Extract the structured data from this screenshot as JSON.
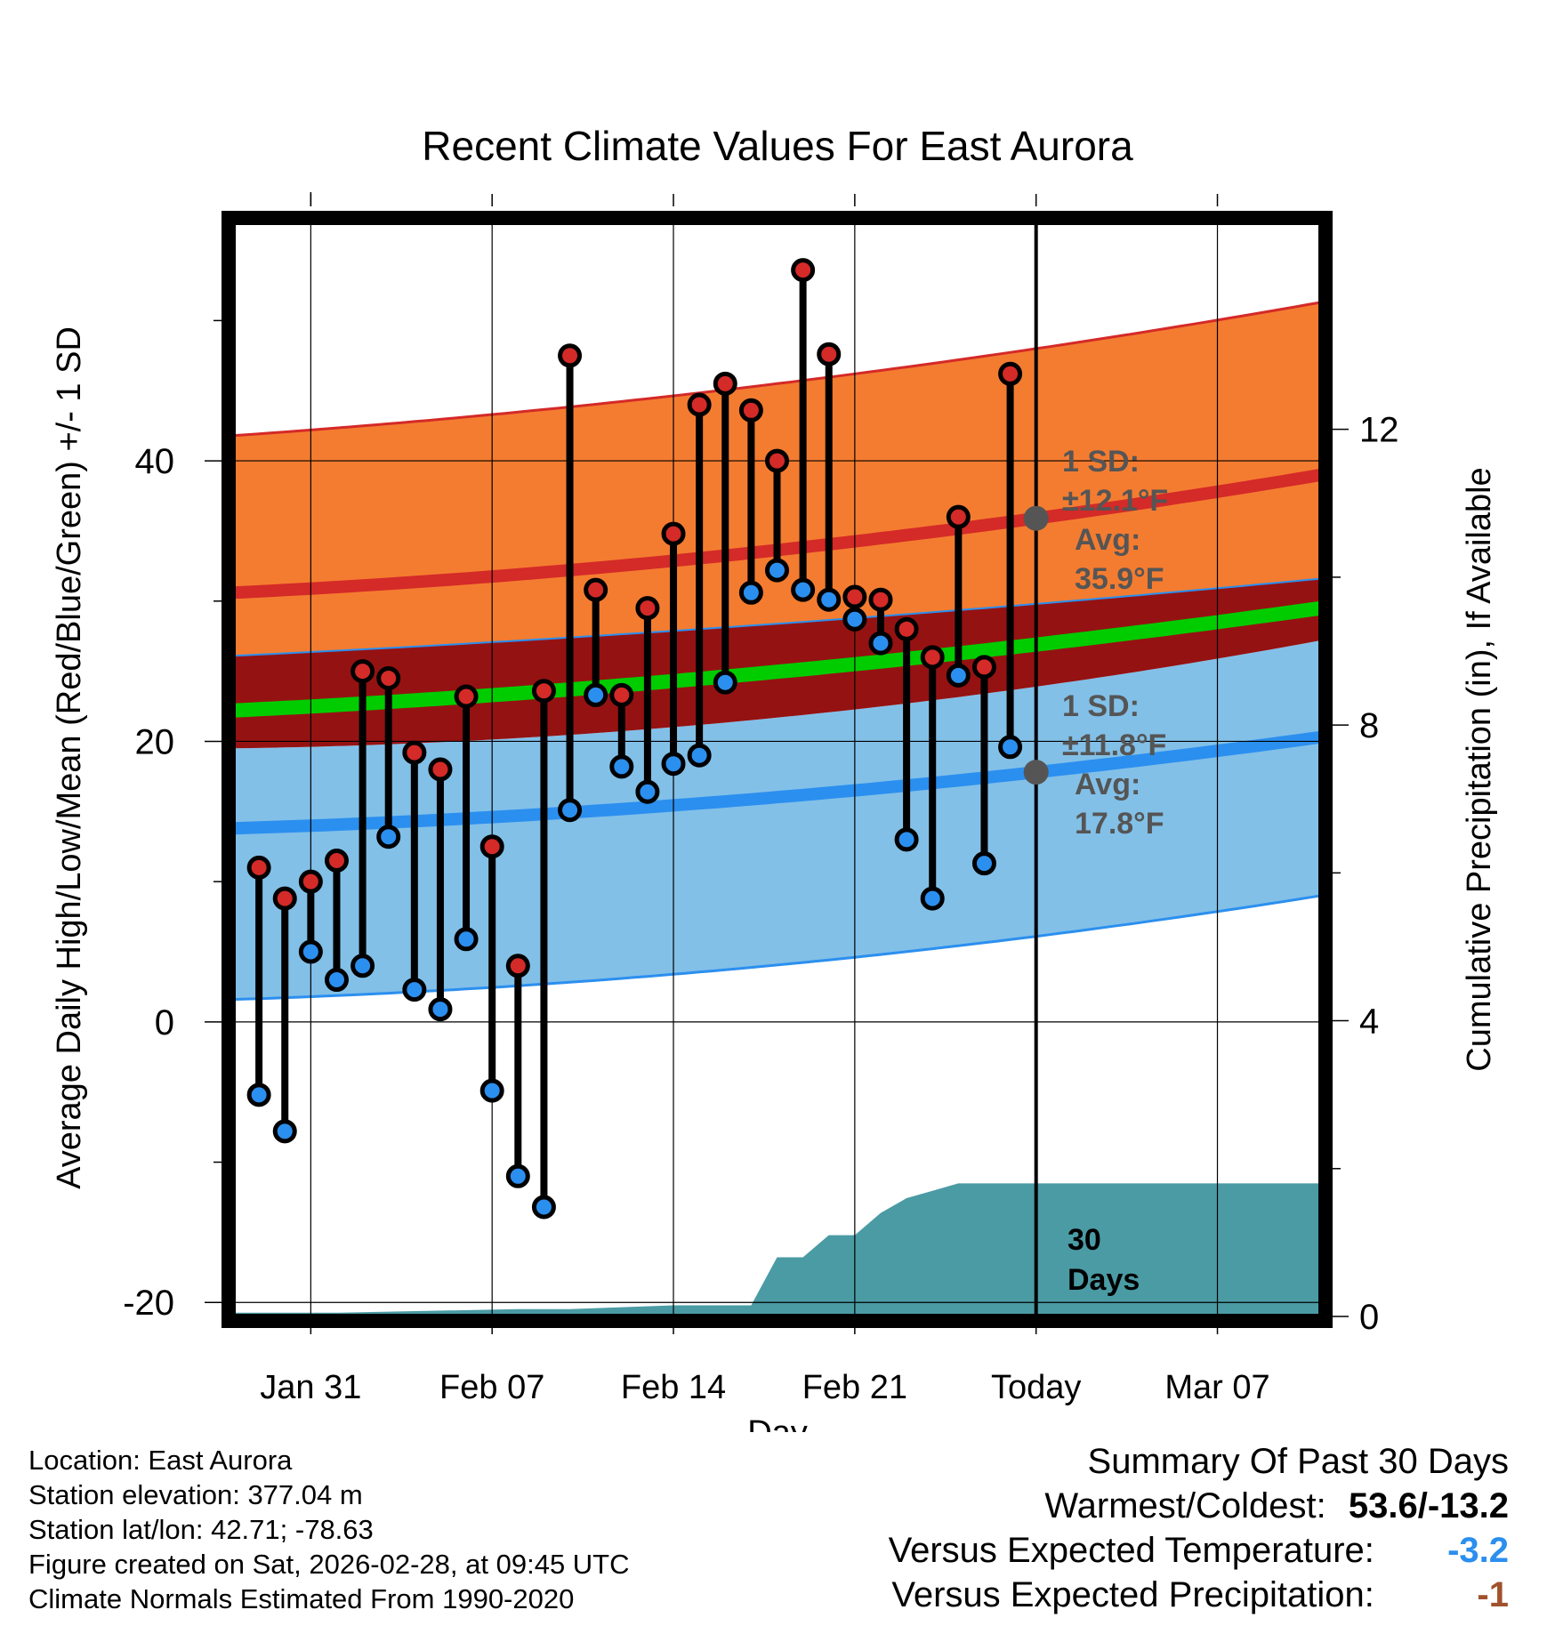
{
  "chart_data": {
    "type": "line",
    "title": "Recent Climate Values For East Aurora",
    "xlabel": "Day",
    "ylabel": "Average Daily High/Low/Mean (Red/Blue/Green) +/- 1 SD",
    "y2label": "Cumulative Precipitation (in), If Available",
    "ylim": [
      -21,
      57
    ],
    "y2lim": [
      0,
      30
    ],
    "xlim": [
      -31,
      11
    ],
    "x_tick_positions": [
      -28,
      -21,
      -14,
      -7,
      0,
      7
    ],
    "x_tick_labels": [
      "Jan 31",
      "Feb 07",
      "Feb 14",
      "Feb 21",
      "Today",
      "Mar 07"
    ],
    "y_ticks": [
      -20,
      0,
      20,
      40
    ],
    "y2_ticks": [
      0,
      4,
      8,
      12
    ],
    "days": [
      -30,
      -29,
      -28,
      -27,
      -26,
      -25,
      -24,
      -23,
      -22,
      -21,
      -20,
      -19,
      -18,
      -17,
      -16,
      -15,
      -14,
      -13,
      -12,
      -11,
      -10,
      -9,
      -8,
      -7,
      -6,
      -5,
      -4,
      -3,
      -2,
      -1
    ],
    "daily_high": [
      11.0,
      8.8,
      10.0,
      11.5,
      25.0,
      24.5,
      19.2,
      18.0,
      23.2,
      12.5,
      4.0,
      23.6,
      47.5,
      30.8,
      23.3,
      29.5,
      34.8,
      44.0,
      45.5,
      43.6,
      40.0,
      53.6,
      47.6,
      30.3,
      30.1,
      28.0,
      26.0,
      36.0,
      25.3,
      46.2
    ],
    "daily_low": [
      -5.2,
      -7.8,
      5.0,
      3.0,
      4.0,
      13.2,
      2.3,
      0.9,
      5.9,
      -4.9,
      -11.0,
      -13.2,
      15.1,
      23.3,
      18.2,
      16.4,
      18.4,
      19.0,
      24.2,
      30.6,
      32.2,
      30.8,
      30.1,
      28.7,
      27.0,
      13.0,
      8.8,
      24.7,
      11.3,
      19.6
    ],
    "normal_high": {
      "start": 30.6,
      "today": 35.9,
      "end": 39.0
    },
    "normal_high_upper": {
      "start": 41.8,
      "today": 48.0,
      "end": 51.3
    },
    "normal_low": {
      "start": 13.8,
      "today": 17.8,
      "end": 20.3
    },
    "normal_low_lower": {
      "start": 1.6,
      "today": 6.1,
      "end": 9.0
    },
    "normal_mean": {
      "start": 22.2,
      "today": 26.9,
      "end": 29.5
    },
    "normal_mean_band_upper": {
      "start": 26.1,
      "today": 29.8,
      "end": 31.6
    },
    "normal_mean_band_lower": {
      "start": 19.5,
      "today": 23.9,
      "end": 27.2
    },
    "cumulative_precip": {
      "days": [
        -31,
        -30,
        -27,
        -20,
        -18,
        -14,
        -11,
        -10,
        -9,
        -8,
        -7,
        -6,
        -5,
        -4,
        -3,
        -2,
        -1,
        0,
        11
      ],
      "values": [
        0.05,
        0.05,
        0.05,
        0.1,
        0.1,
        0.15,
        0.15,
        0.8,
        0.8,
        1.1,
        1.1,
        1.4,
        1.6,
        1.7,
        1.8,
        1.8,
        1.8,
        1.8,
        1.8
      ]
    },
    "annotations": {
      "high_sd": "1 SD:",
      "high_sd_value": "±12.1°F",
      "high_avg": "Avg:",
      "high_avg_value": "35.9°F",
      "low_sd": "1 SD:",
      "low_sd_value": "±11.8°F",
      "low_avg": "Avg:",
      "low_avg_value": "17.8°F",
      "window_line1": "30",
      "window_line2": "Days"
    },
    "colors": {
      "high_band": "#f47c30",
      "high_line": "#d42a28",
      "low_band": "#82c0e8",
      "low_line": "#2b8fef",
      "mean_band": "#951212",
      "mean_line": "#00cc00",
      "precip": "#4a9ba4",
      "high_dot": "#d42a28",
      "low_dot": "#2b8fef",
      "annotation": "#555555"
    }
  },
  "info": {
    "location": "Location: East Aurora",
    "elevation": "Station elevation: 377.04 m",
    "latlon": "Station lat/lon: 42.71; -78.63",
    "created": "Figure created on Sat, 2026-02-28, at 09:45 UTC",
    "normals": "Climate Normals Estimated From 1990-2020"
  },
  "summary": {
    "title": "Summary Of Past 30 Days",
    "warm_cold_label": "Warmest/Coldest:",
    "warm_cold_value": "53.6/-13.2",
    "temp_label": "Versus Expected Temperature:",
    "temp_value": "-3.2",
    "temp_color": "#2b8fef",
    "precip_label": "Versus Expected Precipitation:",
    "precip_value": "-1",
    "precip_color": "#a0522d"
  }
}
